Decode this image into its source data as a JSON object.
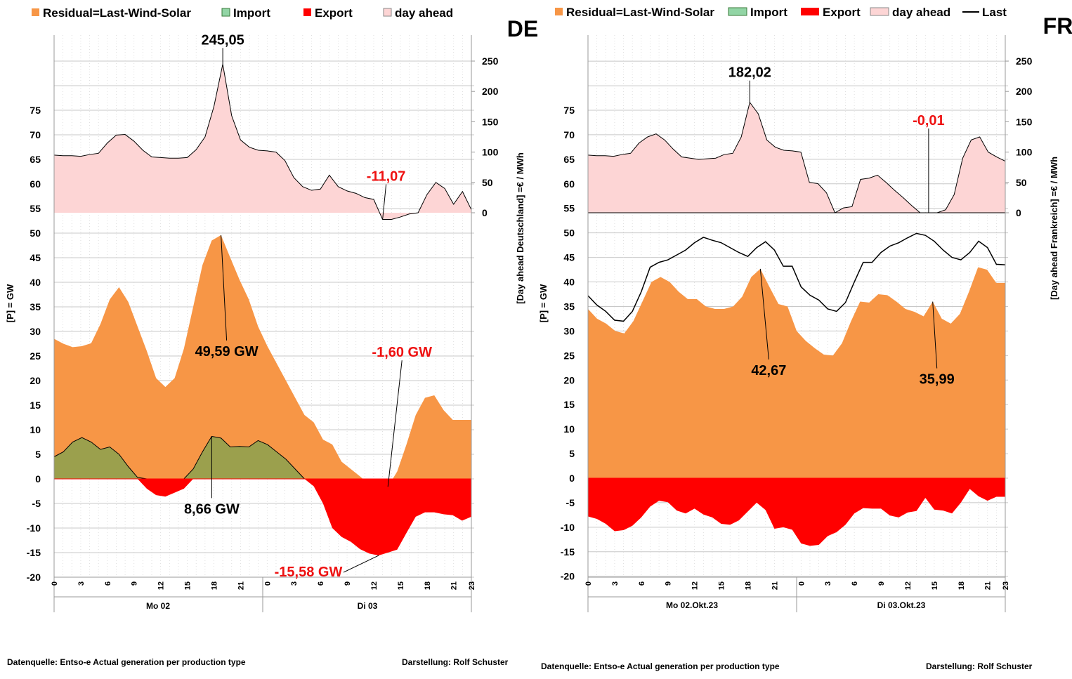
{
  "chart_data": [
    {
      "type": "area",
      "panel_label": "DE",
      "legend": [
        "Residual=Last-Wind-Solar",
        "Import",
        "Export",
        "day ahead"
      ],
      "ylabel_left": "[P] = GW",
      "ylabel_right": "[Day ahead Deutschland] =€ / MWh",
      "yticks_left": [
        "75",
        "70",
        "65",
        "60",
        "55",
        "50",
        "45",
        "40",
        "35",
        "30",
        "25",
        "20",
        "15",
        "10",
        "5",
        "0",
        "-5",
        "-10",
        "-15",
        "-20"
      ],
      "yticks_right": [
        "250",
        "200",
        "150",
        "100",
        "50",
        "0"
      ],
      "xticks": [
        "0",
        "3",
        "6",
        "9",
        "12",
        "15",
        "18",
        "21",
        "0",
        "3",
        "6",
        "9",
        "12",
        "15",
        "18",
        "21",
        "23"
      ],
      "day_labels": [
        "Mo 02",
        "Di 03"
      ],
      "residual": [
        28.5,
        27.5,
        26.8,
        27,
        27.6,
        31.5,
        36.5,
        39,
        36,
        31,
        26,
        20.5,
        18.7,
        20.5,
        26.5,
        35,
        43.5,
        48.5,
        49.59,
        45,
        40.5,
        36.5,
        31,
        27,
        23.5,
        20,
        16.5,
        13,
        11.5,
        8,
        7,
        3.5,
        2,
        0.5,
        -1.2,
        -1.4,
        -1.6,
        1.5,
        7,
        13,
        16.5,
        17,
        14,
        12,
        12,
        12
      ],
      "import": [
        4.5,
        5.5,
        7.5,
        8.4,
        7.5,
        6,
        6.5,
        5,
        2.5,
        0.3,
        0,
        0,
        0,
        0,
        0,
        2,
        5.5,
        8.66,
        8.3,
        6.5,
        6.6,
        6.5,
        7.8,
        7,
        5.5,
        4,
        2,
        0,
        0,
        0,
        0,
        0,
        0,
        0,
        0,
        0,
        0,
        0,
        0,
        0,
        0,
        0,
        0,
        0,
        0,
        0
      ],
      "export": [
        0,
        0,
        0,
        0,
        0,
        0,
        0,
        0,
        0,
        0,
        -2,
        -3.3,
        -3.6,
        -2.8,
        -2,
        0,
        0,
        0,
        0,
        0,
        0,
        0,
        0,
        0,
        0,
        0,
        0,
        0,
        -1.5,
        -5,
        -10,
        -11.8,
        -12.8,
        -14.3,
        -15.2,
        -15.58,
        -15,
        -14.4,
        -11,
        -7.7,
        -6.8,
        -6.8,
        -7.2,
        -7.4,
        -8.5,
        -7.7
      ],
      "day_ahead": [
        95,
        94,
        94,
        93,
        96,
        98,
        115,
        128,
        129,
        118,
        103,
        92,
        91,
        90,
        90,
        91,
        104,
        125,
        175,
        245.05,
        160,
        120,
        108,
        103,
        102,
        100,
        86,
        58,
        43,
        37,
        39,
        62,
        43,
        36,
        32,
        25,
        22,
        -11.07,
        -11,
        -7,
        -2,
        0,
        30,
        50,
        40,
        14,
        35,
        5
      ],
      "annotations": [
        {
          "text": "245,05",
          "series": "day_ahead",
          "index": 19,
          "color": "#000000"
        },
        {
          "text": "-11,07",
          "series": "day_ahead",
          "index": 37,
          "color": "#ee1111"
        },
        {
          "text": "49,59 GW",
          "series": "residual",
          "index": 18,
          "color": "#000000"
        },
        {
          "text": "8,66 GW",
          "series": "import",
          "index": 17,
          "color": "#000000"
        },
        {
          "text": "-1,60 GW",
          "series": "residual",
          "index": 36,
          "color": "#ee1111"
        },
        {
          "text": "-15,58 GW",
          "series": "export",
          "index": 35,
          "color": "#ee1111"
        }
      ]
    },
    {
      "type": "area",
      "panel_label": "FR",
      "legend": [
        "Residual=Last-Wind-Solar",
        "Import",
        "Export",
        "day ahead",
        "Last"
      ],
      "ylabel_left": "[P] = GW",
      "ylabel_right": "[Day ahead Frankreich] =€ / MWh",
      "yticks_left": [
        "75",
        "70",
        "65",
        "60",
        "55",
        "50",
        "45",
        "40",
        "35",
        "30",
        "25",
        "20",
        "15",
        "10",
        "5",
        "0",
        "-5",
        "-10",
        "-15",
        "-20"
      ],
      "yticks_right": [
        "250",
        "200",
        "150",
        "100",
        "50",
        "0"
      ],
      "xticks": [
        "0",
        "3",
        "6",
        "9",
        "12",
        "15",
        "18",
        "21",
        "0",
        "3",
        "6",
        "9",
        "12",
        "15",
        "18",
        "21",
        "23"
      ],
      "day_labels": [
        "Mo 02.Okt.23",
        "Di 03.Okt.23"
      ],
      "residual": [
        34.5,
        32.5,
        31.5,
        30,
        29.5,
        32,
        36,
        40,
        41,
        40,
        38,
        36.5,
        36.5,
        35,
        34.5,
        34.5,
        35,
        37,
        41,
        42.67,
        39,
        35.5,
        35,
        30,
        28,
        26.5,
        25.2,
        25,
        27.5,
        32,
        36,
        35.8,
        37.5,
        37.3,
        36,
        34.5,
        33.9,
        33,
        35.99,
        32.5,
        31.5,
        33.5,
        38,
        43,
        42.5,
        39.8,
        39.8
      ],
      "last": [
        37.2,
        35.3,
        34,
        32.2,
        32,
        34,
        38,
        43,
        44,
        44.5,
        45.5,
        46.5,
        48,
        49.1,
        48.5,
        48,
        47,
        46,
        45.2,
        47,
        48.2,
        46.5,
        43.2,
        43.2,
        39,
        37.3,
        36.3,
        34.5,
        34,
        35.8,
        40,
        44,
        44,
        46,
        47.3,
        48,
        49,
        49.9,
        49.5,
        48.3,
        46.5,
        45,
        44.5,
        46,
        48.3,
        47,
        43.6,
        43.5
      ],
      "export": [
        -7.8,
        -8.3,
        -9.3,
        -10.8,
        -10.6,
        -9.7,
        -8,
        -5.8,
        -4.6,
        -4.9,
        -6.6,
        -7.2,
        -6.2,
        -7.4,
        -8,
        -9.3,
        -9.5,
        -8.6,
        -6.8,
        -5,
        -6.5,
        -10.3,
        -10,
        -10.5,
        -13.3,
        -13.8,
        -13.6,
        -11.8,
        -11,
        -9.5,
        -7.2,
        -6.1,
        -6.2,
        -6.2,
        -7.6,
        -8,
        -7,
        -6.7,
        -4,
        -6.4,
        -6.6,
        -7.2,
        -5,
        -2.2,
        -3.7,
        -4.6,
        -3.8,
        -3.8
      ],
      "day_ahead": [
        95,
        94,
        94,
        93,
        96,
        98,
        115,
        125,
        130,
        120,
        105,
        92,
        90,
        88,
        89,
        90,
        96,
        98,
        125,
        182.02,
        163,
        120,
        108,
        103,
        102,
        100,
        50,
        48,
        33,
        0,
        8,
        10,
        55,
        57,
        62,
        50,
        37,
        25,
        12,
        0,
        -0.01,
        0,
        5,
        30,
        90,
        120,
        125,
        100,
        92,
        85
      ],
      "annotations": [
        {
          "text": "182,02",
          "series": "day_ahead",
          "index": 19,
          "color": "#000000"
        },
        {
          "text": "-0,01",
          "series": "day_ahead",
          "index": 40,
          "color": "#ee1111"
        },
        {
          "text": "42,67",
          "series": "residual",
          "index": 19,
          "color": "#000000"
        },
        {
          "text": "35,99",
          "series": "residual",
          "index": 38,
          "color": "#000000"
        }
      ]
    }
  ],
  "colors": {
    "residual": "#f79646",
    "import_legend": "#92d5a5",
    "import_area": "#9ba04d",
    "export": "#ff0000",
    "day_ahead": "#fdd5d5",
    "red_text": "#ee1111"
  },
  "footer": {
    "de_source": "Datenquelle: Entso-e  Actual generation per production type",
    "de_credit": "Darstellung:  Rolf Schuster",
    "fr_source": "Datenquelle: Entso-e  Actual generation per production type",
    "fr_credit": "Darstellung:  Rolf Schuster"
  }
}
